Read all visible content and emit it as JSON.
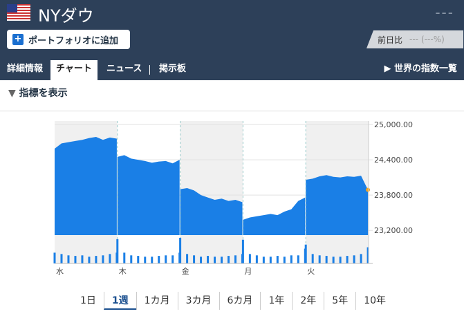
{
  "header": {
    "title": "NYダウ",
    "price": "---",
    "add_button": "ポートフォリオに追加",
    "change_label": "前日比",
    "change": "---",
    "change_pct": "(---%)"
  },
  "tabs": {
    "items": [
      "詳細情報",
      "チャート",
      "ニュース",
      "掲示板"
    ],
    "active": 1,
    "world_link": "世界の指数一覧"
  },
  "indicator_toggle": "指標を表示",
  "chart": {
    "type": "area",
    "days": [
      "水",
      "木",
      "金",
      "月",
      "火"
    ],
    "points_per_day": 10,
    "ylim": [
      23120,
      25060
    ],
    "yticks": [
      {
        "value": 25000,
        "label": "25,000.00"
      },
      {
        "value": 24400,
        "label": "24,400.00"
      },
      {
        "value": 23800,
        "label": "23,800.00"
      },
      {
        "value": 23200,
        "label": "23,200.00"
      }
    ],
    "color": "#1a7fe6",
    "values": [
      24590,
      24680,
      24700,
      24720,
      24740,
      24770,
      24790,
      24740,
      24780,
      24760,
      24450,
      24480,
      24420,
      24400,
      24380,
      24350,
      24370,
      24380,
      24340,
      24400,
      23900,
      23920,
      23880,
      23800,
      23760,
      23720,
      23740,
      23700,
      23720,
      23680,
      23380,
      23420,
      23440,
      23460,
      23480,
      23460,
      23520,
      23560,
      23700,
      23760,
      24060,
      24080,
      24120,
      24140,
      24110,
      24100,
      24120,
      24110,
      24130,
      23890
    ],
    "volume_ylim": [
      0,
      100
    ],
    "volume": [
      40,
      35,
      30,
      28,
      30,
      25,
      28,
      30,
      35,
      40,
      90,
      40,
      30,
      28,
      25,
      25,
      28,
      30,
      30,
      40,
      95,
      35,
      30,
      25,
      28,
      25,
      25,
      28,
      30,
      35,
      88,
      35,
      30,
      25,
      25,
      28,
      25,
      30,
      30,
      55,
      70,
      35,
      30,
      28,
      25,
      25,
      28,
      30,
      35,
      60
    ]
  },
  "ranges": {
    "items": [
      "1日",
      "1週",
      "1カ月",
      "3カ月",
      "6カ月",
      "1年",
      "2年",
      "5年",
      "10年"
    ],
    "active": 1
  }
}
